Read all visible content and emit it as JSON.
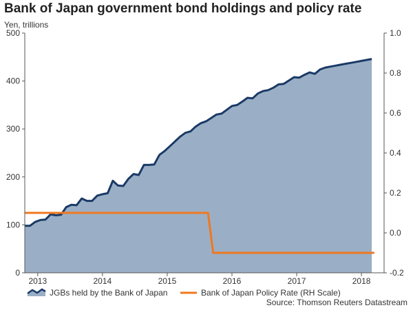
{
  "title": "Bank of Japan government bond holdings and policy rate",
  "source": "Source: Thomson Reuters Datastream",
  "chart_data": {
    "type": "area",
    "title": "Bank of Japan government bond holdings and policy rate",
    "ylabel": "Yen, trillions",
    "xlabel": "",
    "x_range": [
      2012.8,
      2018.35
    ],
    "x_ticks": [
      {
        "label": "2013",
        "x": 2013.0
      },
      {
        "label": "2014",
        "x": 2014.0
      },
      {
        "label": "2015",
        "x": 2015.0
      },
      {
        "label": "2016",
        "x": 2016.0
      },
      {
        "label": "2017",
        "x": 2017.0
      },
      {
        "label": "2018",
        "x": 2018.0
      }
    ],
    "y_left": {
      "range": [
        0,
        500
      ],
      "ticks": [
        "0",
        "100",
        "200",
        "300",
        "400",
        "500"
      ]
    },
    "y_right": {
      "range": [
        -0.2,
        1.0
      ],
      "ticks": [
        "-0.2",
        "0.0",
        "0.2",
        "0.4",
        "0.6",
        "0.8",
        "1.0"
      ]
    },
    "grid": false,
    "legend_position": "bottom",
    "colors": {
      "area_fill": "#9aafc6",
      "area_line": "#1a3a66",
      "rate_line": "#f07820"
    },
    "series": [
      {
        "name": "JGBs held by the Bank of Japan",
        "axis": "left",
        "type": "area",
        "x": [
          2012.8,
          2012.88,
          2012.96,
          2013.04,
          2013.12,
          2013.2,
          2013.28,
          2013.36,
          2013.44,
          2013.52,
          2013.6,
          2013.68,
          2013.76,
          2013.84,
          2013.92,
          2014.0,
          2014.08,
          2014.16,
          2014.24,
          2014.32,
          2014.4,
          2014.48,
          2014.56,
          2014.64,
          2014.72,
          2014.8,
          2014.88,
          2014.96,
          2015.04,
          2015.12,
          2015.2,
          2015.28,
          2015.36,
          2015.44,
          2015.52,
          2015.6,
          2015.68,
          2015.76,
          2015.84,
          2015.92,
          2016.0,
          2016.08,
          2016.16,
          2016.24,
          2016.32,
          2016.4,
          2016.48,
          2016.56,
          2016.64,
          2016.72,
          2016.8,
          2016.88,
          2016.96,
          2017.04,
          2017.12,
          2017.2,
          2017.28,
          2017.36,
          2017.44,
          2017.52,
          2017.6,
          2017.68,
          2017.76,
          2017.84,
          2017.92,
          2018.0,
          2018.08,
          2018.16
        ],
        "values": [
          98,
          98,
          106,
          110,
          111,
          122,
          120,
          121,
          137,
          142,
          141,
          155,
          150,
          150,
          161,
          164,
          166,
          192,
          182,
          181,
          196,
          206,
          204,
          225,
          225,
          226,
          246,
          254,
          264,
          274,
          284,
          292,
          295,
          305,
          312,
          316,
          323,
          330,
          332,
          340,
          348,
          350,
          357,
          365,
          364,
          374,
          379,
          381,
          386,
          393,
          394,
          401,
          408,
          407,
          413,
          418,
          415,
          424,
          428,
          430,
          432,
          434,
          436,
          438,
          440,
          442,
          444,
          446
        ]
      },
      {
        "name": "Bank of Japan Policy Rate (RH Scale)",
        "axis": "right",
        "type": "line",
        "x": [
          2012.8,
          2015.63,
          2015.71,
          2018.2
        ],
        "values": [
          0.1,
          0.1,
          -0.1,
          -0.1
        ]
      }
    ]
  },
  "legend": {
    "items": [
      {
        "label": "JGBs held by the Bank of Japan"
      },
      {
        "label": "Bank of Japan Policy Rate (RH Scale)"
      }
    ]
  }
}
